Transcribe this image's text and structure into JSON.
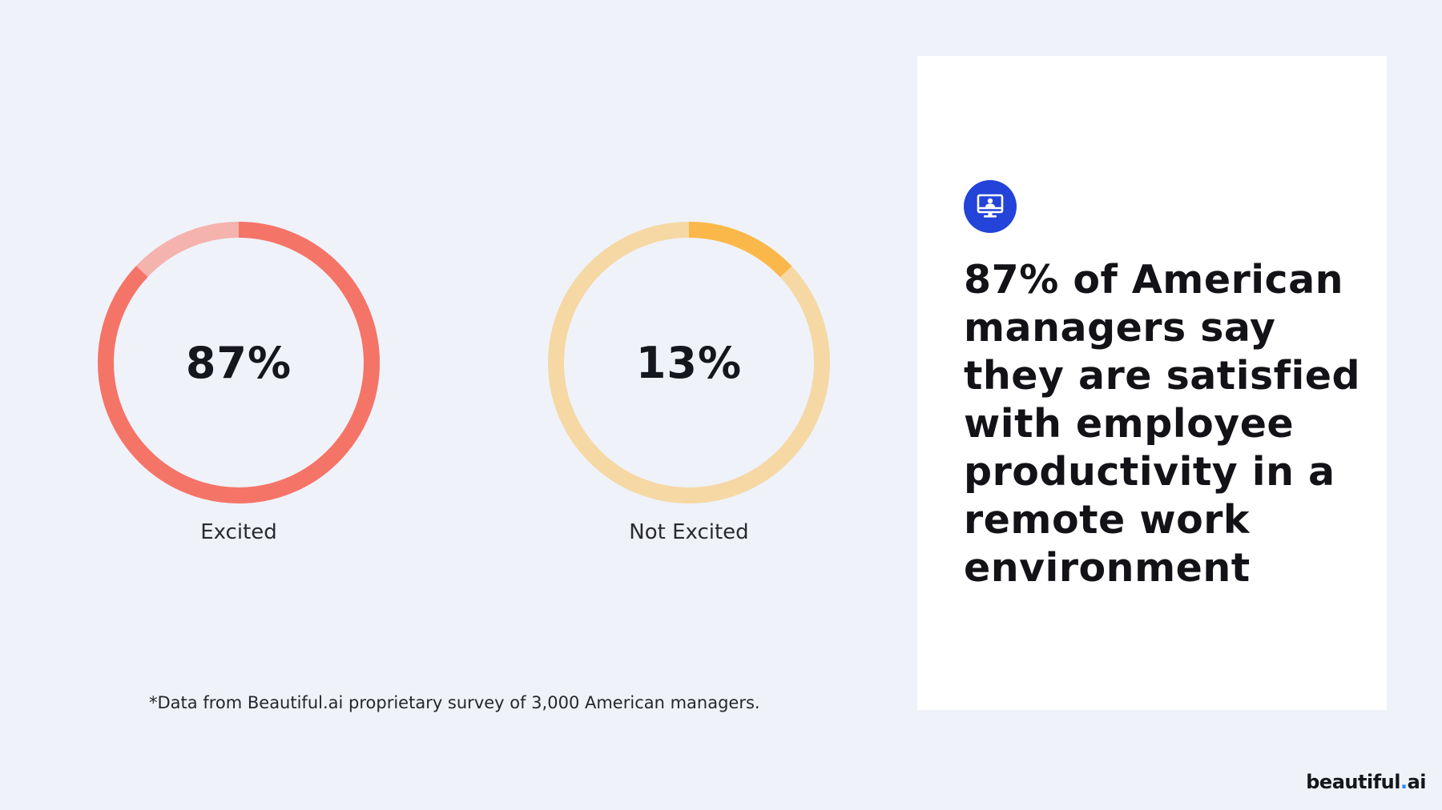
{
  "chart_data": [
    {
      "type": "pie",
      "style": "donut-gauge",
      "value": 87,
      "unit": "%",
      "value_text": "87%",
      "label": "Excited",
      "colors": {
        "filled": "#f57468",
        "track": "#f5b3ae"
      }
    },
    {
      "type": "pie",
      "style": "donut-gauge",
      "value": 13,
      "unit": "%",
      "value_text": "13%",
      "label": "Not Excited",
      "colors": {
        "filled": "#fbb84a",
        "track": "#f5d8a4"
      }
    }
  ],
  "footnote": "*Data from Beautiful.ai proprietary survey of 3,000 American managers.",
  "card": {
    "icon": "computer-user-icon",
    "icon_color": "#2343d9",
    "headline": "87% of American managers say they are satisfied with employee productivity in a remote work environment"
  },
  "brand": {
    "name": "beautiful",
    "dot": ".",
    "suffix": "ai"
  }
}
